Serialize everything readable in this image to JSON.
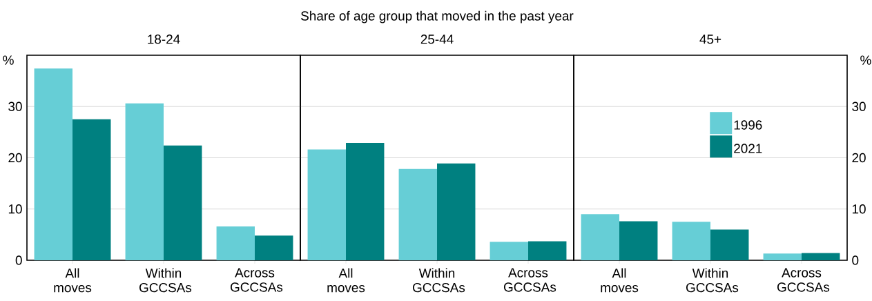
{
  "chart_data": [
    {
      "type": "bar",
      "title": "18-24",
      "annotations": [
        "Share of age group that moved in the past year"
      ],
      "ylabel": "%",
      "categories": [
        "All moves",
        "Within GCCSAs",
        "Across GCCSAs"
      ],
      "series": [
        {
          "color": "#66ced6",
          "values": [
            37.4,
            30.6,
            6.6
          ]
        },
        {
          "color": "#008080",
          "values": [
            27.5,
            22.4,
            4.8
          ]
        }
      ],
      "ylim": [
        0,
        40
      ],
      "yticks": [
        0,
        10,
        20,
        30
      ],
      "grid": "y"
    },
    {
      "type": "bar",
      "title": "25-44",
      "categories": [
        "All moves",
        "Within GCCSAs",
        "Across GCCSAs"
      ],
      "series": [
        {
          "color": "#66ced6",
          "values": [
            21.6,
            17.8,
            3.6
          ]
        },
        {
          "color": "#008080",
          "values": [
            22.9,
            18.9,
            3.7
          ]
        }
      ],
      "ylim": [
        0,
        40
      ],
      "yticks": [
        0,
        10,
        20,
        30
      ],
      "grid": "y",
      "tick_labels": "x"
    },
    {
      "type": "bar",
      "title": "45+",
      "y2label": "%",
      "categories": [
        "All moves",
        "Within GCCSAs",
        "Across GCCSAs"
      ],
      "series": [
        {
          "name": "1996",
          "color": "#66ced6",
          "values": [
            9.0,
            7.5,
            1.3
          ],
          "axis": "y2"
        },
        {
          "name": "2021",
          "color": "#008080",
          "values": [
            7.6,
            6.0,
            1.4
          ],
          "axis": "y2"
        }
      ],
      "y2lim": [
        0,
        40
      ],
      "y2ticks": [
        0,
        10,
        20,
        30
      ],
      "grid": "y",
      "legend": "top"
    }
  ]
}
